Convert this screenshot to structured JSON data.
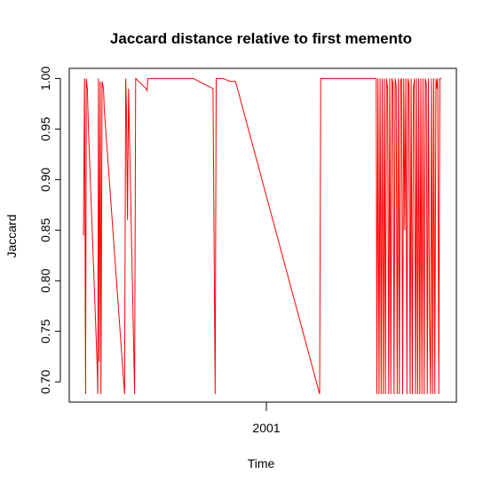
{
  "chart_data": {
    "type": "line",
    "title": "Jaccard distance relative to first memento",
    "xlabel": "Time",
    "ylabel": "Jaccard",
    "x_ticks": [
      "2001"
    ],
    "y_ticks": [
      "0.70",
      "0.75",
      "0.80",
      "0.85",
      "0.90",
      "0.95",
      "1.00"
    ],
    "ylim": [
      0.68,
      1.01
    ],
    "grid": false,
    "series": [
      {
        "color": "#ff0000",
        "points": [
          [
            0.0,
            0.845
          ],
          [
            0.003,
            1.0
          ],
          [
            0.006,
            0.688
          ],
          [
            0.008,
            1.0
          ],
          [
            0.011,
            0.99
          ],
          [
            0.014,
            0.95
          ],
          [
            0.038,
            0.72
          ],
          [
            0.04,
            0.688
          ],
          [
            0.042,
            1.0
          ],
          [
            0.044,
            0.72
          ],
          [
            0.047,
            0.997
          ],
          [
            0.049,
            0.688
          ],
          [
            0.052,
            0.997
          ],
          [
            0.056,
            0.99
          ],
          [
            0.058,
            0.97
          ],
          [
            0.115,
            0.688
          ],
          [
            0.118,
            1.0
          ],
          [
            0.12,
            0.97
          ],
          [
            0.123,
            0.86
          ],
          [
            0.126,
            0.99
          ],
          [
            0.14,
            0.74
          ],
          [
            0.143,
            0.688
          ],
          [
            0.146,
            1.0
          ],
          [
            0.175,
            0.99
          ],
          [
            0.178,
            0.988
          ],
          [
            0.18,
            1.0
          ],
          [
            0.307,
            1.0
          ],
          [
            0.362,
            0.99
          ],
          [
            0.365,
            0.84
          ],
          [
            0.368,
            0.688
          ],
          [
            0.371,
            1.0
          ],
          [
            0.39,
            1.0
          ],
          [
            0.41,
            0.997
          ],
          [
            0.425,
            0.997
          ],
          [
            0.66,
            0.688
          ],
          [
            0.663,
            1.0
          ],
          [
            0.818,
            1.0
          ],
          [
            0.82,
            0.688
          ],
          [
            0.823,
            1.0
          ],
          [
            0.826,
            0.688
          ],
          [
            0.829,
            1.0
          ],
          [
            0.832,
            0.688
          ],
          [
            0.835,
            1.0
          ],
          [
            0.838,
            0.688
          ],
          [
            0.841,
            1.0
          ],
          [
            0.844,
            0.688
          ],
          [
            0.847,
            1.0
          ],
          [
            0.85,
            0.99
          ],
          [
            0.853,
            0.688
          ],
          [
            0.856,
            1.0
          ],
          [
            0.859,
            0.688
          ],
          [
            0.862,
            1.0
          ],
          [
            0.865,
            0.995
          ],
          [
            0.868,
            0.688
          ],
          [
            0.871,
            1.0
          ],
          [
            0.874,
            0.993
          ],
          [
            0.877,
            0.688
          ],
          [
            0.88,
            1.0
          ],
          [
            0.883,
            0.688
          ],
          [
            0.886,
            0.998
          ],
          [
            0.889,
            1.0
          ],
          [
            0.892,
            0.688
          ],
          [
            0.895,
            1.0
          ],
          [
            0.898,
            0.85
          ],
          [
            0.901,
            1.0
          ],
          [
            0.904,
            0.688
          ],
          [
            0.907,
            1.0
          ],
          [
            0.91,
            0.993
          ],
          [
            0.913,
            0.688
          ],
          [
            0.916,
            1.0
          ],
          [
            0.919,
            0.688
          ],
          [
            0.922,
            0.99
          ],
          [
            0.925,
            1.0
          ],
          [
            0.928,
            0.688
          ],
          [
            0.931,
            1.0
          ],
          [
            0.934,
            0.688
          ],
          [
            0.937,
            1.0
          ],
          [
            0.94,
            0.688
          ],
          [
            0.943,
            1.0
          ],
          [
            0.946,
            0.688
          ],
          [
            0.949,
            1.0
          ],
          [
            0.952,
            0.688
          ],
          [
            0.955,
            1.0
          ],
          [
            0.958,
            0.995
          ],
          [
            0.961,
            0.688
          ],
          [
            0.964,
            1.0
          ],
          [
            0.967,
            0.77
          ],
          [
            0.97,
            0.688
          ],
          [
            0.973,
            1.0
          ],
          [
            0.976,
            0.688
          ],
          [
            0.979,
            1.0
          ],
          [
            0.982,
            0.688
          ],
          [
            0.985,
            1.0
          ],
          [
            0.988,
            0.99
          ],
          [
            0.99,
            1.0
          ],
          [
            0.993,
            0.688
          ],
          [
            0.996,
            1.0
          ],
          [
            1.0,
            1.0
          ]
        ]
      }
    ]
  }
}
